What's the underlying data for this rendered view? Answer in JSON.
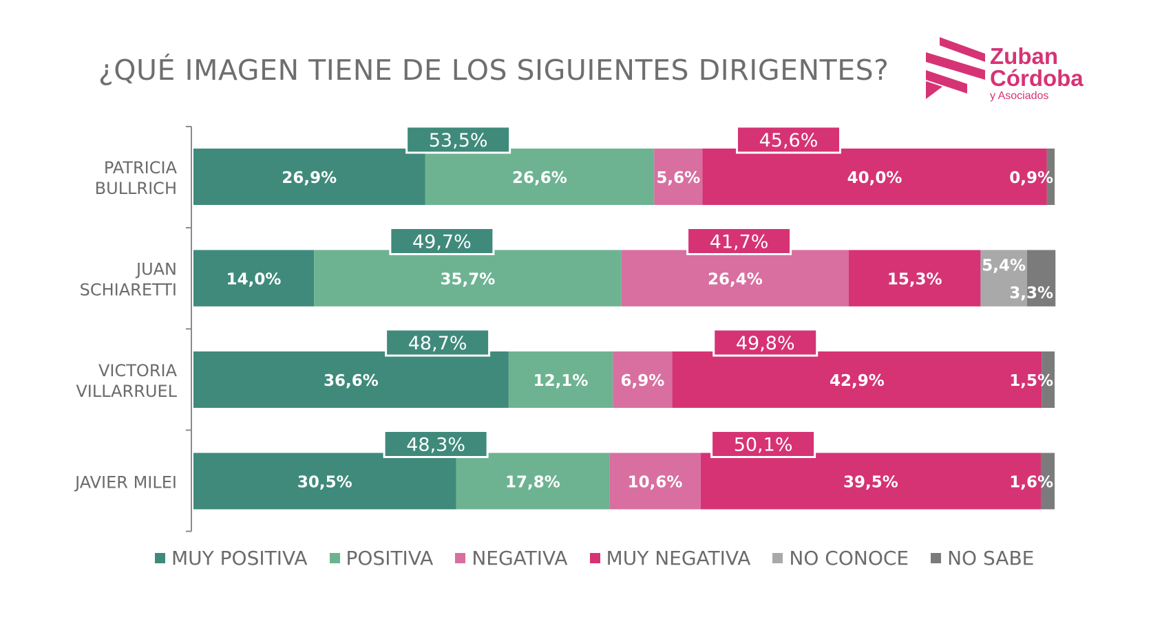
{
  "title": "¿QUÉ IMAGEN TIENE DE LOS SIGUIENTES DIRIGENTES?",
  "logo": {
    "line1": "Zuban",
    "line2": "Córdoba",
    "line3": "y Asociados"
  },
  "colors": {
    "muy_positiva": "#3f8a7b",
    "positiva": "#6db392",
    "negativa": "#d86fa0",
    "muy_negativa": "#d63374",
    "no_conoce": "#a9a9a9",
    "no_sabe": "#7b7b7b",
    "brand": "#d63375"
  },
  "chart_data": {
    "type": "bar",
    "orientation": "horizontal",
    "stacked": true,
    "categories": [
      [
        "PATRICIA",
        "BULLRICH"
      ],
      [
        "JUAN",
        "SCHIARETTI"
      ],
      [
        "VICTORIA",
        "VILLARRUEL"
      ],
      [
        "JAVIER MILEI"
      ]
    ],
    "series": [
      {
        "name": "MUY POSITIVA",
        "values": [
          26.9,
          14.0,
          36.6,
          30.5
        ],
        "labels": [
          "26,9%",
          "14,0%",
          "36,6%",
          "30,5%"
        ]
      },
      {
        "name": "POSITIVA",
        "values": [
          26.6,
          35.7,
          12.1,
          17.8
        ],
        "labels": [
          "26,6%",
          "35,7%",
          "12,1%",
          "17,8%"
        ]
      },
      {
        "name": "NEGATIVA",
        "values": [
          5.6,
          26.4,
          6.9,
          10.6
        ],
        "labels": [
          "5,6%",
          "26,4%",
          "6,9%",
          "10,6%"
        ]
      },
      {
        "name": "MUY NEGATIVA",
        "values": [
          40.0,
          15.3,
          42.9,
          39.5
        ],
        "labels": [
          "40,0%",
          "15,3%",
          "42,9%",
          "39,5%"
        ]
      },
      {
        "name": "NO CONOCE",
        "values": [
          0,
          5.4,
          0,
          0
        ],
        "labels": [
          "",
          "5,4%",
          "",
          ""
        ]
      },
      {
        "name": "NO SABE",
        "values": [
          0.9,
          3.3,
          1.5,
          1.6
        ],
        "labels": [
          "0,9%",
          "3,3%",
          "1,5%",
          "1,6%"
        ]
      }
    ],
    "totals_positive": {
      "values": [
        53.5,
        49.7,
        48.7,
        48.3
      ],
      "labels": [
        "53,5%",
        "49,7%",
        "48,7%",
        "48,3%"
      ]
    },
    "totals_negative": {
      "values": [
        45.6,
        41.7,
        49.8,
        50.1
      ],
      "labels": [
        "45,6%",
        "41,7%",
        "49,8%",
        "50,1%"
      ]
    },
    "xlim": [
      0,
      100
    ],
    "legend_position": "bottom"
  }
}
